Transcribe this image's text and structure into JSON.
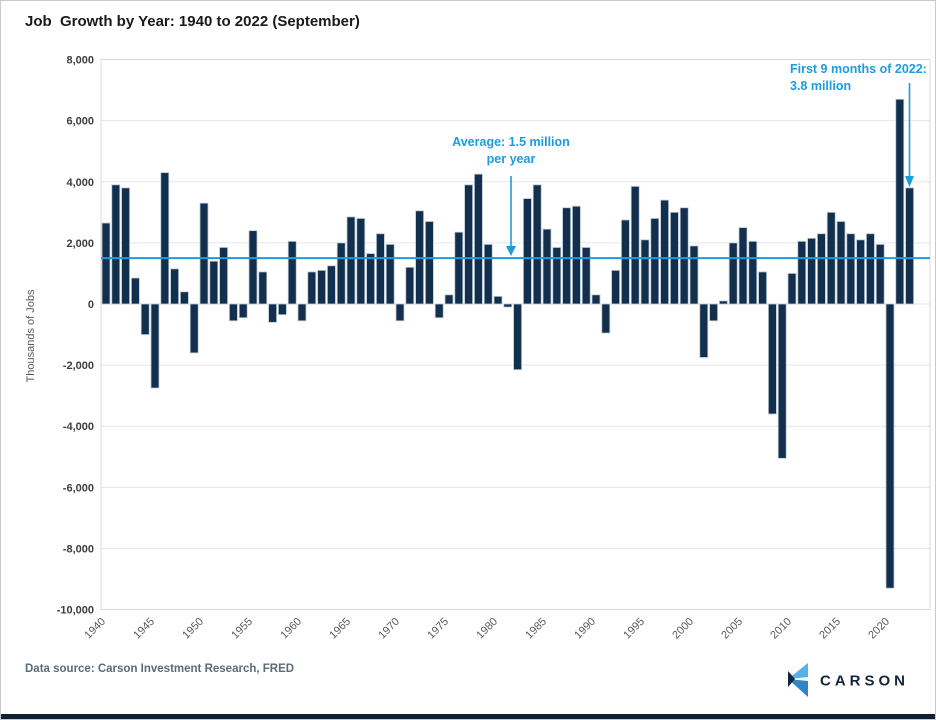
{
  "chart_data": {
    "type": "bar",
    "title": "Job  Growth by Year: 1940 to 2022 (September)",
    "ylabel": "Thousands of Jobs",
    "ylim": [
      -10000,
      8000
    ],
    "ytick_step": 2000,
    "ytick_values": [
      8000,
      6000,
      4000,
      2000,
      0,
      -2000,
      -4000,
      -6000,
      -8000,
      -10000
    ],
    "ytick_labels": [
      "8,000",
      "6,000",
      "4,000",
      "2,000",
      "0",
      "-2,000",
      "-4,000",
      "-6,000",
      "-8,000",
      "-10,000"
    ],
    "xtick_labels": [
      "1940",
      "1945",
      "1950",
      "1955",
      "1960",
      "1965",
      "1970",
      "1975",
      "1980",
      "1985",
      "1990",
      "1995",
      "2000",
      "2005",
      "2010",
      "2015",
      "2020"
    ],
    "years": [
      1940,
      1941,
      1942,
      1943,
      1944,
      1945,
      1946,
      1947,
      1948,
      1949,
      1950,
      1951,
      1952,
      1953,
      1954,
      1955,
      1956,
      1957,
      1958,
      1959,
      1960,
      1961,
      1962,
      1963,
      1964,
      1965,
      1966,
      1967,
      1968,
      1969,
      1970,
      1971,
      1972,
      1973,
      1974,
      1975,
      1976,
      1977,
      1978,
      1979,
      1980,
      1981,
      1982,
      1983,
      1984,
      1985,
      1986,
      1987,
      1988,
      1989,
      1990,
      1991,
      1992,
      1993,
      1994,
      1995,
      1996,
      1997,
      1998,
      1999,
      2000,
      2001,
      2002,
      2003,
      2004,
      2005,
      2006,
      2007,
      2008,
      2009,
      2010,
      2011,
      2012,
      2013,
      2014,
      2015,
      2016,
      2017,
      2018,
      2019,
      2020,
      2021,
      2022
    ],
    "values": [
      2650,
      3900,
      3800,
      850,
      -1000,
      -2750,
      4300,
      1150,
      400,
      -1600,
      3300,
      1400,
      1850,
      -550,
      -450,
      2400,
      1050,
      -600,
      -350,
      2050,
      -550,
      1050,
      1100,
      1250,
      2000,
      2850,
      2800,
      1650,
      2300,
      1950,
      -550,
      1200,
      3050,
      2700,
      -450,
      300,
      2350,
      3900,
      4250,
      1950,
      250,
      -100,
      -2150,
      3450,
      3900,
      2450,
      1850,
      3150,
      3200,
      1850,
      300,
      -950,
      1100,
      2750,
      3850,
      2100,
      2800,
      3400,
      3000,
      3150,
      1900,
      -1750,
      -550,
      100,
      2000,
      2500,
      2050,
      1050,
      -3600,
      -5050,
      1000,
      2050,
      2150,
      2300,
      3000,
      2700,
      2300,
      2100,
      2300,
      1950,
      -9300,
      6700,
      3800
    ],
    "average_line": {
      "value": 1500,
      "label_line1": "Average: 1.5 million",
      "label_line2": "per year"
    },
    "annotation_2022": {
      "line1": "First 9 months of 2022:",
      "line2": "3.8 million",
      "value": 3800
    },
    "colors": {
      "bar": "#12304d",
      "bar_outline": "#bccad6",
      "accent": "#1b9be0"
    },
    "grid": true,
    "legend": "none"
  },
  "footer": {
    "source": "Data source: Carson Investment Research, FRED",
    "logo": {
      "text": "CARSON",
      "navy": "#13253c",
      "light_blue": "#58b0e9",
      "mid_blue": "#2d86c8"
    }
  }
}
